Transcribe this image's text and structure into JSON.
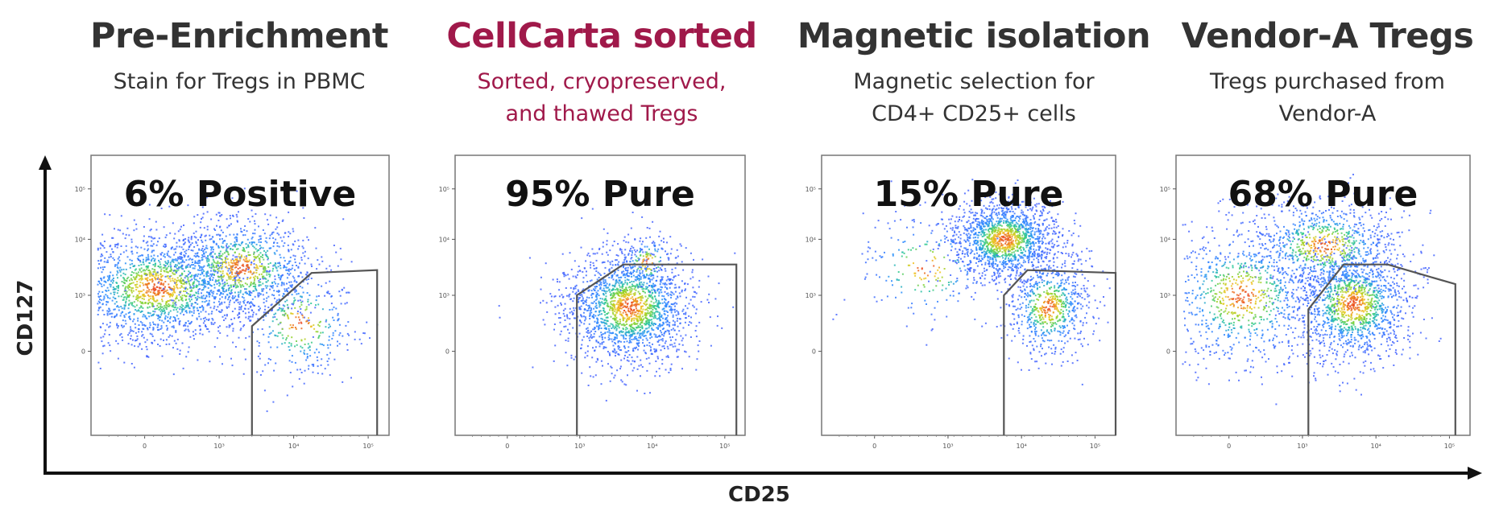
{
  "x_axis_label": "CD25",
  "y_axis_label": "CD127",
  "colors": {
    "title_default": "#333333",
    "title_highlight": "#a0194a",
    "gate": "#555555"
  },
  "panels": [
    {
      "title": "Pre-Enrichment",
      "subtitle_lines": [
        "Stain for Tregs in PBMC"
      ],
      "result_label": "6% Positive",
      "highlight": false
    },
    {
      "title": "CellCarta sorted",
      "subtitle_lines": [
        "Sorted, cryopreserved,",
        "and thawed Tregs"
      ],
      "result_label": "95% Pure",
      "highlight": true
    },
    {
      "title": "Magnetic isolation",
      "subtitle_lines": [
        "Magnetic selection for",
        "CD4+ CD25+ cells"
      ],
      "result_label": "15% Pure",
      "highlight": false
    },
    {
      "title": "Vendor-A Tregs",
      "subtitle_lines": [
        "Tregs purchased from",
        "Vendor-A"
      ],
      "result_label": "68% Pure",
      "highlight": false
    }
  ],
  "chart_data": [
    {
      "type": "scatter",
      "title": "Pre-Enrichment",
      "xlabel": "CD25",
      "ylabel": "CD127",
      "annotation": "6% Positive",
      "percent_in_gate": 6,
      "x_scale": "log",
      "y_scale": "log",
      "x_ticks": [
        "0",
        "10³",
        "10⁴",
        "10⁵"
      ],
      "y_ticks": [
        "0",
        "10³",
        "10⁴",
        "10⁵"
      ]
    },
    {
      "type": "scatter",
      "title": "CellCarta sorted",
      "xlabel": "CD25",
      "ylabel": "CD127",
      "annotation": "95% Pure",
      "percent_in_gate": 95,
      "x_scale": "log",
      "y_scale": "log",
      "x_ticks": [
        "0",
        "10³",
        "10⁴",
        "10⁵"
      ],
      "y_ticks": [
        "0",
        "10³",
        "10⁴",
        "10⁵"
      ]
    },
    {
      "type": "scatter",
      "title": "Magnetic isolation",
      "xlabel": "CD25",
      "ylabel": "CD127",
      "annotation": "15% Pure",
      "percent_in_gate": 15,
      "x_scale": "log",
      "y_scale": "log",
      "x_ticks": [
        "0",
        "10³",
        "10⁴",
        "10⁵"
      ],
      "y_ticks": [
        "0",
        "10³",
        "10⁴",
        "10⁵"
      ]
    },
    {
      "type": "scatter",
      "title": "Vendor-A Tregs",
      "xlabel": "CD25",
      "ylabel": "CD127",
      "annotation": "68% Pure",
      "percent_in_gate": 68,
      "x_scale": "log",
      "y_scale": "log",
      "x_ticks": [
        "0",
        "10³",
        "10⁴",
        "10⁵"
      ],
      "y_ticks": [
        "0",
        "10³",
        "10⁴",
        "10⁵"
      ]
    }
  ]
}
